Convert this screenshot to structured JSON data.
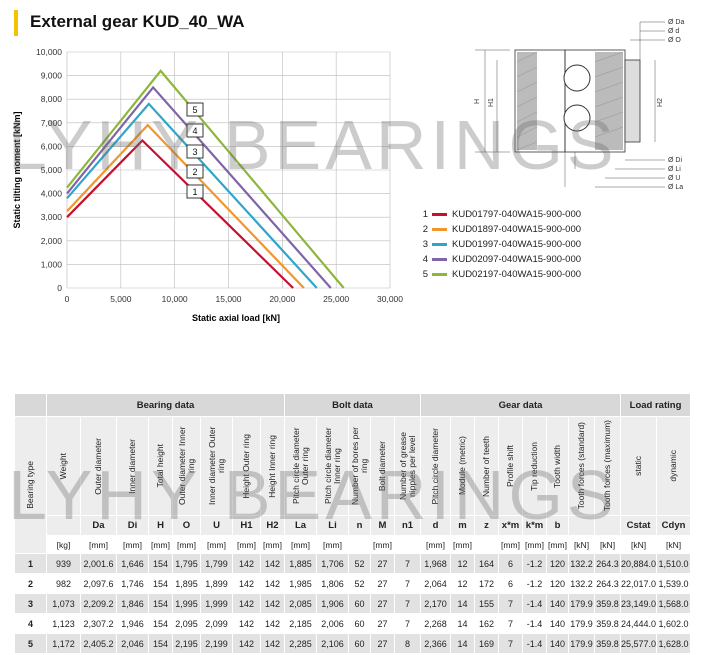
{
  "header": {
    "title": "External gear KUD_40_WA"
  },
  "chart_data": {
    "type": "line",
    "title": "External gear KUD_40_WA",
    "xlabel": "Static axial load [kN]",
    "ylabel": "Static tilting moment [kNm]",
    "xlim": [
      0,
      30000
    ],
    "ylim": [
      0,
      10000
    ],
    "xticks": [
      "0",
      "5,000",
      "10,000",
      "15,000",
      "20,000",
      "25,000",
      "30,000"
    ],
    "yticks": [
      "0",
      "1,000",
      "2,000",
      "3,000",
      "4,000",
      "5,000",
      "6,000",
      "7,000",
      "8,000",
      "9,000",
      "10,000"
    ],
    "grid": true,
    "series": [
      {
        "name": "KUD01797-040WA15-900-000",
        "label": "1",
        "color": "#c8102e",
        "points": [
          [
            0,
            3000
          ],
          [
            7000,
            6250
          ],
          [
            21000,
            0
          ]
        ]
      },
      {
        "name": "KUD01897-040WA15-900-000",
        "label": "2",
        "color": "#f0962d",
        "points": [
          [
            0,
            3250
          ],
          [
            7500,
            6900
          ],
          [
            22000,
            0
          ]
        ]
      },
      {
        "name": "KUD01997-040WA15-900-000",
        "label": "3",
        "color": "#2fa6c8",
        "points": [
          [
            0,
            3800
          ],
          [
            7600,
            7800
          ],
          [
            23200,
            0
          ]
        ]
      },
      {
        "name": "KUD02097-040WA15-900-000",
        "label": "4",
        "color": "#8064a8",
        "points": [
          [
            0,
            4000
          ],
          [
            8000,
            8500
          ],
          [
            24500,
            0
          ]
        ]
      },
      {
        "name": "KUD02197-040WA15-900-000",
        "label": "5",
        "color": "#8db63c",
        "points": [
          [
            0,
            4250
          ],
          [
            8700,
            9200
          ],
          [
            25700,
            0
          ]
        ]
      }
    ],
    "callout_labels": [
      "5",
      "4",
      "3",
      "2",
      "1"
    ]
  },
  "diagram": {
    "labels_right": [
      "Ø Da",
      "Ø d",
      "Ø O",
      "Ø Di",
      "Ø Li",
      "Ø U",
      "Ø La"
    ],
    "labels_left": [
      "H",
      "H1"
    ],
    "labels_right_v": [
      "H2"
    ]
  },
  "legend": [
    {
      "num": "1",
      "text": "KUD01797-040WA15-900-000",
      "color": "#c8102e"
    },
    {
      "num": "2",
      "text": "KUD01897-040WA15-900-000",
      "color": "#f0962d"
    },
    {
      "num": "3",
      "text": "KUD01997-040WA15-900-000",
      "color": "#2fa6c8"
    },
    {
      "num": "4",
      "text": "KUD02097-040WA15-900-000",
      "color": "#8064a8"
    },
    {
      "num": "5",
      "text": "KUD02197-040WA15-900-000",
      "color": "#8db63c"
    }
  ],
  "table": {
    "groups": [
      "",
      "Bearing data",
      "Bolt data",
      "Gear data",
      "Load rating"
    ],
    "labels": [
      "Bearing type",
      "Weight",
      "Outer diameter",
      "Inner diameter",
      "Total height",
      "Outer diameter Inner ring",
      "Inner diameter Outer ring",
      "Height Outer ring",
      "Height Inner ring",
      "Pitch circle diameter Outer ring",
      "Pitch circle diameter Inner ring",
      "Number of bores per ring",
      "Bolt diameter",
      "Number of grease nipples per level",
      "Pitch circle diameter",
      "Module (metric)",
      "Number of teeth",
      "Profile shift",
      "Tip reduction",
      "Tooth width",
      "Tooth forces (standard)",
      "Tooth forces (maximum)",
      "static",
      "dynamic"
    ],
    "symbols": [
      "",
      "Da",
      "Di",
      "H",
      "O",
      "U",
      "H1",
      "H2",
      "La",
      "Li",
      "n",
      "M",
      "n1",
      "d",
      "m",
      "z",
      "x*m",
      "k*m",
      "b",
      "",
      "",
      "Cstat",
      "Cdyn"
    ],
    "units": [
      "[kg]",
      "[mm]",
      "[mm]",
      "[mm]",
      "[mm]",
      "[mm]",
      "[mm]",
      "[mm]",
      "[mm]",
      "[mm]",
      "",
      "[mm]",
      "",
      "[mm]",
      "[mm]",
      "",
      "[mm]",
      "[mm]",
      "[mm]",
      "[kN]",
      "[kN]",
      "[kN]",
      "[kN]"
    ],
    "rows": [
      [
        "1",
        "939",
        "2,001.6",
        "1,646",
        "154",
        "1,795",
        "1,799",
        "142",
        "142",
        "1,885",
        "1,706",
        "52",
        "27",
        "7",
        "1,968",
        "12",
        "164",
        "6",
        "-1.2",
        "120",
        "132.2",
        "264.3",
        "20,884.0",
        "1,510.0"
      ],
      [
        "2",
        "982",
        "2,097.6",
        "1,746",
        "154",
        "1,895",
        "1,899",
        "142",
        "142",
        "1,985",
        "1,806",
        "52",
        "27",
        "7",
        "2,064",
        "12",
        "172",
        "6",
        "-1.2",
        "120",
        "132.2",
        "264.3",
        "22,017.0",
        "1,539.0"
      ],
      [
        "3",
        "1,073",
        "2,209.2",
        "1,846",
        "154",
        "1,995",
        "1,999",
        "142",
        "142",
        "2,085",
        "1,906",
        "60",
        "27",
        "7",
        "2,170",
        "14",
        "155",
        "7",
        "-1.4",
        "140",
        "179.9",
        "359.8",
        "23,149.0",
        "1,568.0"
      ],
      [
        "4",
        "1,123",
        "2,307.2",
        "1,946",
        "154",
        "2,095",
        "2,099",
        "142",
        "142",
        "2,185",
        "2,006",
        "60",
        "27",
        "7",
        "2,268",
        "14",
        "162",
        "7",
        "-1.4",
        "140",
        "179.9",
        "359.8",
        "24,444.0",
        "1,602.0"
      ],
      [
        "5",
        "1,172",
        "2,405.2",
        "2,046",
        "154",
        "2,195",
        "2,199",
        "142",
        "142",
        "2,285",
        "2,106",
        "60",
        "27",
        "8",
        "2,366",
        "14",
        "169",
        "7",
        "-1.4",
        "140",
        "179.9",
        "359.8",
        "25,577.0",
        "1,628.0"
      ]
    ]
  },
  "watermark": "LYHY BEARINGS"
}
